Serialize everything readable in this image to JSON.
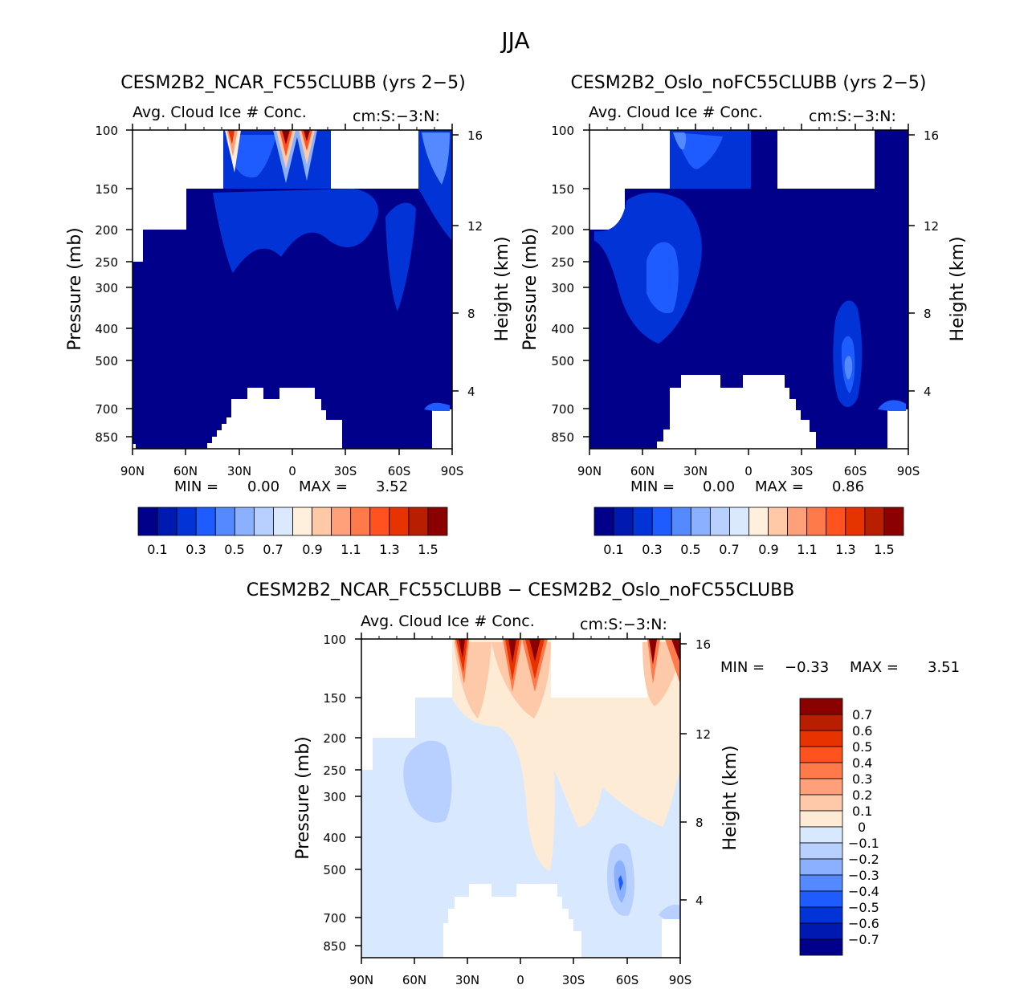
{
  "figure": {
    "season": "JJA",
    "diff_title": "CESM2B2_NCAR_FC55CLUBB − CESM2B2_Oslo_noFC55CLUBB"
  },
  "colors": {
    "seq_scale": [
      "#00008b",
      "#0019b0",
      "#0233d6",
      "#1f5cff",
      "#5589ff",
      "#8bb0ff",
      "#b8d0ff",
      "#dbe9ff",
      "#fff0de",
      "#ffc9a8",
      "#ffa07a",
      "#ff7a4a",
      "#ff521f",
      "#e63300",
      "#b81f00",
      "#8b0000"
    ],
    "diff_scale": [
      "#00008b",
      "#0019b0",
      "#0233d6",
      "#1f5cff",
      "#5589ff",
      "#8bb0ff",
      "#b8d0ff",
      "#d8e8ff",
      "#fdebd6",
      "#fdc9a8",
      "#ffa07a",
      "#ff7a4a",
      "#ff521f",
      "#e63300",
      "#b81f00",
      "#8b0000"
    ]
  },
  "chart_data": [
    {
      "id": "ncar",
      "type": "contour",
      "title": "CESM2B2_NCAR_FC55CLUBB (yrs 2−5)",
      "subtitle_left": "Avg. Cloud Ice # Conc.",
      "subtitle_right": "cm:S:−3:N:",
      "xlabel": "",
      "ylabel": "Pressure (mb)",
      "ylabel_right": "Height (km)",
      "x_ticks": [
        "90N",
        "60N",
        "30N",
        "0",
        "30S",
        "60S",
        "90S"
      ],
      "x_values": [
        90,
        60,
        30,
        0,
        -30,
        -60,
        -90
      ],
      "y_ticks": [
        "100",
        "150",
        "200",
        "250",
        "300",
        "400",
        "500",
        "700",
        "850"
      ],
      "y_values": [
        100,
        150,
        200,
        250,
        300,
        400,
        500,
        700,
        850
      ],
      "height_ticks": [
        "16",
        "12",
        "8",
        "4"
      ],
      "height_values": [
        16,
        12,
        8,
        4
      ],
      "ylim": [
        100,
        900
      ],
      "min_label": "MIN =",
      "min_value": "0.00",
      "max_label": "MAX =",
      "max_value": "3.52",
      "colorbar_labels": [
        "0.1",
        "0.3",
        "0.5",
        "0.7",
        "0.9",
        "1.1",
        "1.3",
        "1.5"
      ]
    },
    {
      "id": "oslo",
      "type": "contour",
      "title": "CESM2B2_Oslo_noFC55CLUBB (yrs 2−5)",
      "subtitle_left": "Avg. Cloud Ice # Conc.",
      "subtitle_right": "cm:S:−3:N:",
      "xlabel": "",
      "ylabel": "Pressure (mb)",
      "ylabel_right": "Height (km)",
      "x_ticks": [
        "90N",
        "60N",
        "30N",
        "0",
        "30S",
        "60S",
        "90S"
      ],
      "x_values": [
        90,
        60,
        30,
        0,
        -30,
        -60,
        -90
      ],
      "y_ticks": [
        "100",
        "150",
        "200",
        "250",
        "300",
        "400",
        "500",
        "700",
        "850"
      ],
      "y_values": [
        100,
        150,
        200,
        250,
        300,
        400,
        500,
        700,
        850
      ],
      "height_ticks": [
        "16",
        "12",
        "8",
        "4"
      ],
      "height_values": [
        16,
        12,
        8,
        4
      ],
      "ylim": [
        100,
        900
      ],
      "min_label": "MIN =",
      "min_value": "0.00",
      "max_label": "MAX =",
      "max_value": "0.86",
      "colorbar_labels": [
        "0.1",
        "0.3",
        "0.5",
        "0.7",
        "0.9",
        "1.1",
        "1.3",
        "1.5"
      ]
    },
    {
      "id": "diff",
      "type": "contour",
      "title": "",
      "subtitle_left": "Avg. Cloud Ice # Conc.",
      "subtitle_right": "cm:S:−3:N:",
      "xlabel": "",
      "ylabel": "Pressure (mb)",
      "ylabel_right": "Height (km)",
      "x_ticks": [
        "90N",
        "60N",
        "30N",
        "0",
        "30S",
        "60S",
        "90S"
      ],
      "x_values": [
        90,
        60,
        30,
        0,
        -30,
        -60,
        -90
      ],
      "y_ticks": [
        "100",
        "150",
        "200",
        "250",
        "300",
        "400",
        "500",
        "700",
        "850"
      ],
      "y_values": [
        100,
        150,
        200,
        250,
        300,
        400,
        500,
        700,
        850
      ],
      "height_ticks": [
        "16",
        "12",
        "8",
        "4"
      ],
      "height_values": [
        16,
        12,
        8,
        4
      ],
      "ylim": [
        100,
        900
      ],
      "min_label": "MIN =",
      "min_value": "−0.33",
      "max_label": "MAX =",
      "max_value": "3.51",
      "colorbar_labels": [
        "0.7",
        "0.6",
        "0.5",
        "0.4",
        "0.3",
        "0.2",
        "0.1",
        "0",
        "−0.1",
        "−0.2",
        "−0.3",
        "−0.4",
        "−0.5",
        "−0.6",
        "−0.7"
      ]
    }
  ]
}
